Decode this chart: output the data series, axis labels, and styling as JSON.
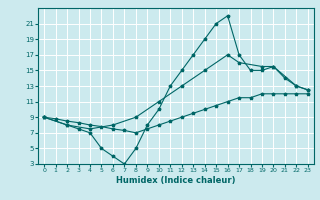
{
  "xlabel": "Humidex (Indice chaleur)",
  "bg_color": "#cceaee",
  "grid_color": "#ffffff",
  "line_color": "#006666",
  "xlim": [
    -0.5,
    23.5
  ],
  "ylim": [
    3,
    23
  ],
  "xticks": [
    0,
    1,
    2,
    3,
    4,
    5,
    6,
    7,
    8,
    9,
    10,
    11,
    12,
    13,
    14,
    15,
    16,
    17,
    18,
    19,
    20,
    21,
    22,
    23
  ],
  "yticks": [
    3,
    5,
    7,
    9,
    11,
    13,
    15,
    17,
    19,
    21
  ],
  "line1_x": [
    0,
    1,
    2,
    3,
    4,
    5,
    6,
    7,
    8,
    9,
    10,
    11,
    12,
    13,
    14,
    15,
    16,
    17,
    18,
    19,
    20,
    21,
    22,
    23
  ],
  "line1_y": [
    9,
    8.8,
    8.5,
    8.3,
    8,
    7.8,
    7.5,
    7.3,
    7,
    7.5,
    8,
    8.5,
    9,
    9.5,
    10,
    10.5,
    11,
    11.5,
    11.5,
    12,
    12,
    12,
    12,
    12
  ],
  "line2_x": [
    0,
    2,
    3,
    4,
    5,
    6,
    7,
    8,
    9,
    10,
    11,
    12,
    13,
    14,
    15,
    16,
    17,
    18,
    19,
    20,
    21,
    22,
    23
  ],
  "line2_y": [
    9,
    8,
    7.5,
    7,
    5,
    4,
    3,
    5,
    8,
    10,
    13,
    15,
    17,
    19,
    21,
    22,
    17,
    15,
    15,
    15.5,
    14,
    13,
    12.5
  ],
  "line3_x": [
    0,
    2,
    4,
    6,
    8,
    10,
    12,
    14,
    16,
    17,
    19,
    20,
    22,
    23
  ],
  "line3_y": [
    9,
    8,
    7.5,
    8,
    9,
    11,
    13,
    15,
    17,
    16,
    15.5,
    15.5,
    13,
    12.5
  ]
}
